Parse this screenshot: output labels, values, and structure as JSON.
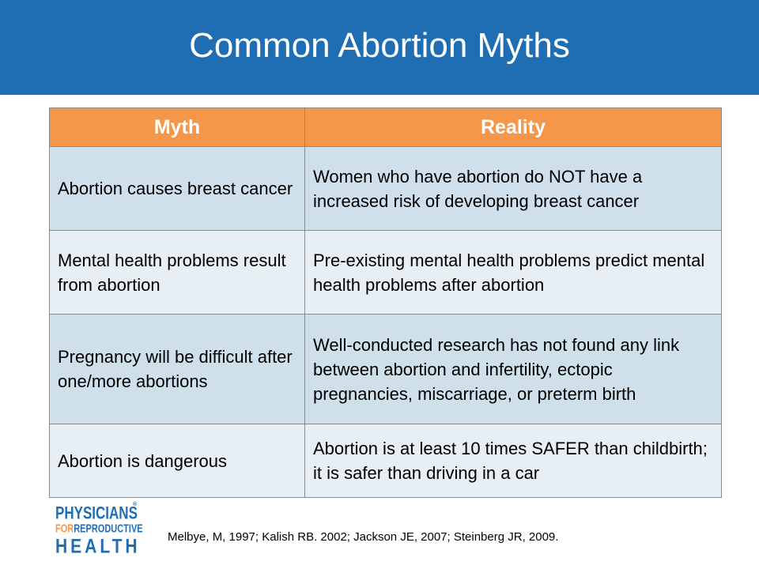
{
  "slide": {
    "title": "Common Abortion Myths"
  },
  "table": {
    "headers": [
      "Myth",
      "Reality"
    ],
    "rows": [
      {
        "myth": "Abortion causes breast cancer",
        "reality": "Women who have abortion do NOT have a increased risk of developing breast cancer"
      },
      {
        "myth": "Mental health problems result from abortion",
        "reality": "Pre-existing mental health problems predict mental health problems after abortion"
      },
      {
        "myth": "Pregnancy will be difficult after one/more abortions",
        "reality": "Well-conducted research has not found any link between abortion and infertility, ectopic pregnancies, miscarriage, or preterm birth"
      },
      {
        "myth": "Abortion is dangerous",
        "reality": "Abortion is at least 10 times SAFER than childbirth; it is safer than driving in a car"
      }
    ]
  },
  "logo": {
    "line1": "PHYSICIANS",
    "line2_for": "FOR",
    "line2_rest": "REPRODUCTIVE",
    "line3": "HEALTH",
    "registered": "®"
  },
  "citation": "Melbye, M, 1997; Kalish RB. 2002; Jackson JE, 2007; Steinberg JR, 2009.",
  "colors": {
    "header_bg": "#1f6db3",
    "table_header_bg": "#f4974a",
    "row_dark": "#cfe0ea",
    "row_light": "#e8eff4"
  }
}
